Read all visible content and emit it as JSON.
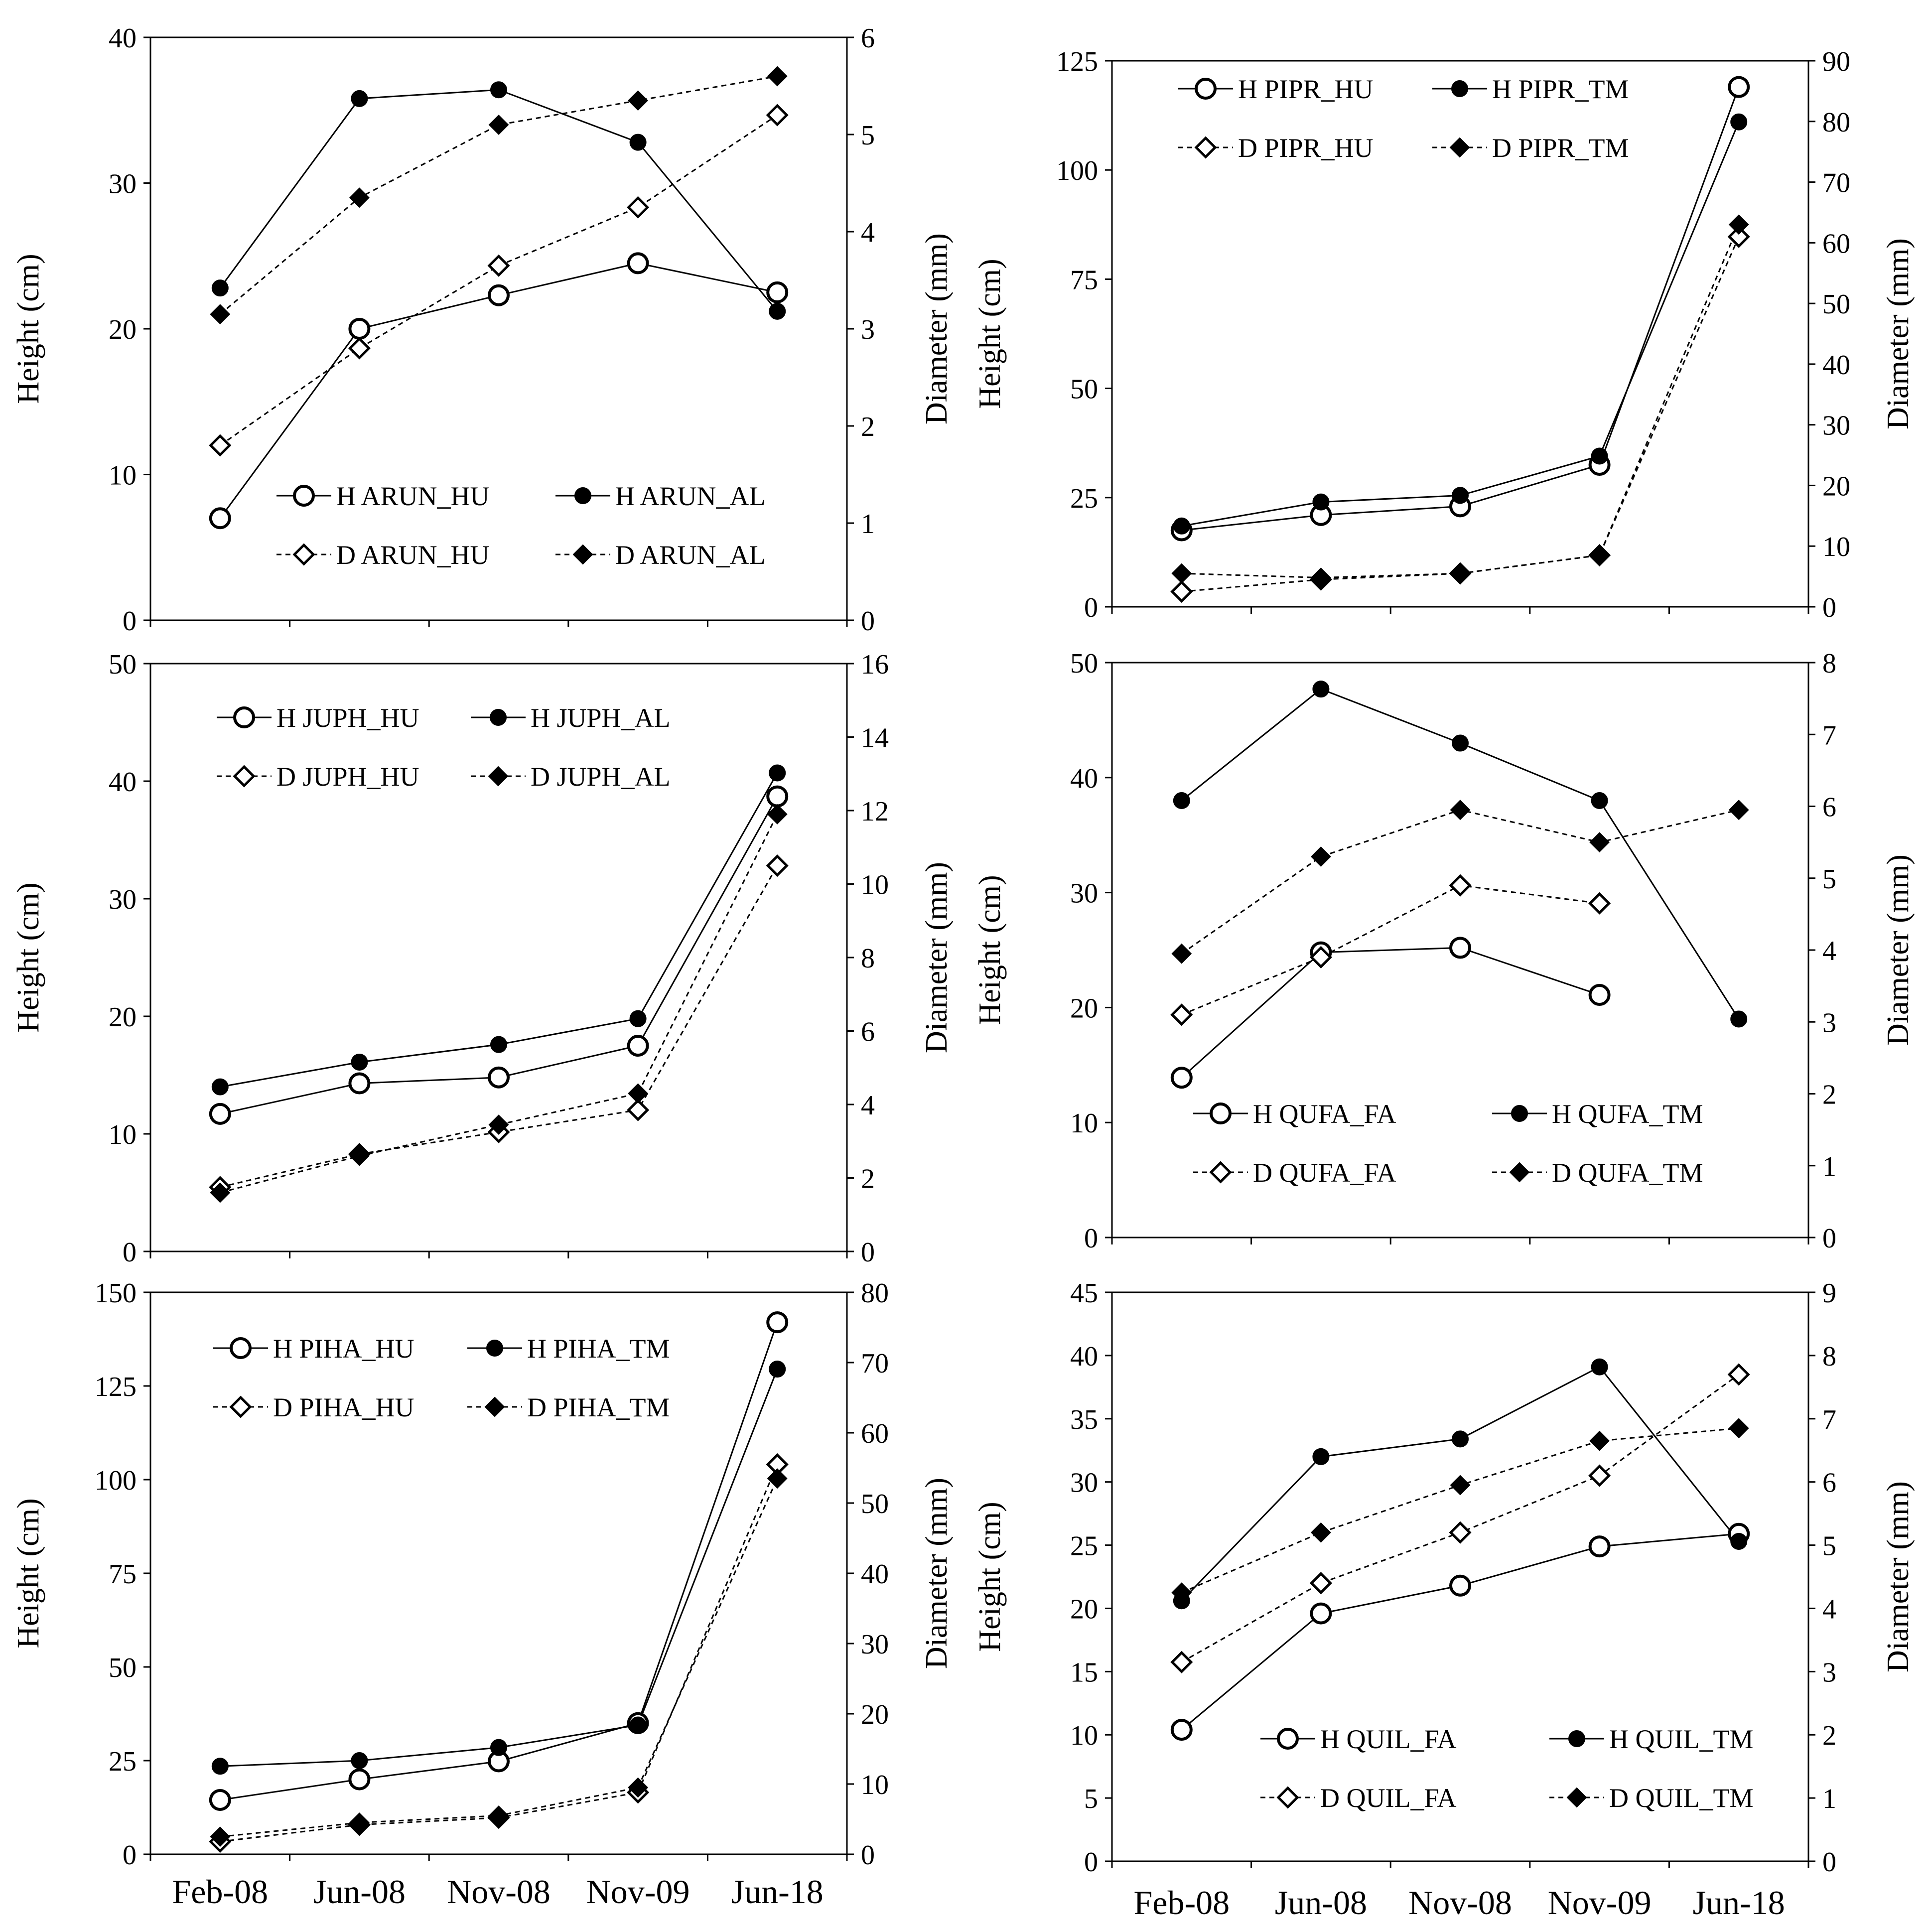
{
  "x_categories": [
    "Feb-08",
    "Jun-08",
    "Nov-08",
    "Nov-09",
    "Jun-18"
  ],
  "chart_data": [
    {
      "type": "line",
      "title": "",
      "xlabel": "",
      "ylabel": "Height (cm)",
      "y2label": "Diameter (mm)",
      "categories": [
        "Feb-08",
        "Jun-08",
        "Nov-08",
        "Nov-09",
        "Jun-18"
      ],
      "ylim": [
        0,
        40
      ],
      "yticks": [
        0,
        10,
        20,
        30,
        40
      ],
      "y2lim": [
        0,
        6
      ],
      "y2ticks": [
        0,
        1,
        2,
        3,
        4,
        5,
        6
      ],
      "legend_placement": "bottom-right",
      "series": [
        {
          "name": "H ARUN_HU",
          "axis": "left",
          "marker": "open-circle",
          "line": "solid",
          "values": [
            7,
            20,
            22.3,
            24.5,
            22.5
          ]
        },
        {
          "name": "H ARUN_AL",
          "axis": "left",
          "marker": "filled-circle",
          "line": "solid",
          "values": [
            22.8,
            35.8,
            36.4,
            32.8,
            21.2
          ]
        },
        {
          "name": "D ARUN_HU",
          "axis": "right",
          "marker": "open-diamond",
          "line": "dashed",
          "values": [
            1.8,
            2.8,
            3.65,
            4.25,
            5.2
          ]
        },
        {
          "name": "D ARUN_AL",
          "axis": "right",
          "marker": "filled-diamond",
          "line": "dashed",
          "values": [
            3.15,
            4.35,
            5.1,
            5.35,
            5.6
          ]
        }
      ]
    },
    {
      "type": "line",
      "title": "",
      "xlabel": "",
      "ylabel": "Height (cm)",
      "y2label": "Diameter (mm)",
      "categories": [
        "Feb-08",
        "Jun-08",
        "Nov-08",
        "Nov-09",
        "Jun-18"
      ],
      "ylim": [
        0,
        125
      ],
      "yticks": [
        0,
        25,
        50,
        75,
        100,
        125
      ],
      "y2lim": [
        0,
        90
      ],
      "y2ticks": [
        0,
        10,
        20,
        30,
        40,
        50,
        60,
        70,
        80,
        90
      ],
      "legend_placement": "top-left",
      "series": [
        {
          "name": "H PIPR_HU",
          "axis": "left",
          "marker": "open-circle",
          "line": "solid",
          "values": [
            17.5,
            21,
            23,
            32.5,
            119
          ]
        },
        {
          "name": "H PIPR_TM",
          "axis": "left",
          "marker": "filled-circle",
          "line": "solid",
          "values": [
            18.5,
            24,
            25.5,
            34.5,
            111
          ]
        },
        {
          "name": "D PIPR_HU",
          "axis": "right",
          "marker": "open-diamond",
          "line": "dashed",
          "values": [
            2.5,
            4.5,
            5.5,
            8.5,
            61
          ]
        },
        {
          "name": "D PIPR_TM",
          "axis": "right",
          "marker": "filled-diamond",
          "line": "dashed",
          "values": [
            5.5,
            4.8,
            5.5,
            8.5,
            63
          ]
        }
      ]
    },
    {
      "type": "line",
      "title": "",
      "xlabel": "",
      "ylabel": "Height (cm)",
      "y2label": "Diameter (mm)",
      "categories": [
        "Feb-08",
        "Jun-08",
        "Nov-08",
        "Nov-09",
        "Jun-18"
      ],
      "ylim": [
        0,
        50
      ],
      "yticks": [
        0,
        10,
        20,
        30,
        40,
        50
      ],
      "y2lim": [
        0,
        16
      ],
      "y2ticks": [
        0,
        2,
        4,
        6,
        8,
        10,
        12,
        14,
        16
      ],
      "legend_placement": "top-left",
      "series": [
        {
          "name": "H JUPH_HU",
          "axis": "left",
          "marker": "open-circle",
          "line": "solid",
          "values": [
            11.7,
            14.3,
            14.8,
            17.5,
            38.7
          ]
        },
        {
          "name": "H JUPH_AL",
          "axis": "left",
          "marker": "filled-circle",
          "line": "solid",
          "values": [
            14,
            16.1,
            17.6,
            19.8,
            40.7
          ]
        },
        {
          "name": "D JUPH_HU",
          "axis": "right",
          "marker": "open-diamond",
          "line": "dashed",
          "values": [
            1.75,
            2.65,
            3.25,
            3.85,
            10.5
          ]
        },
        {
          "name": "D JUPH_AL",
          "axis": "right",
          "marker": "filled-diamond",
          "line": "dashed",
          "values": [
            1.6,
            2.6,
            3.45,
            4.3,
            11.9
          ]
        }
      ]
    },
    {
      "type": "line",
      "title": "",
      "xlabel": "",
      "ylabel": "Height (cm)",
      "y2label": "Diameter (mm)",
      "categories": [
        "Feb-08",
        "Jun-08",
        "Nov-08",
        "Nov-09",
        "Jun-18"
      ],
      "ylim": [
        0,
        50
      ],
      "yticks": [
        0,
        10,
        20,
        30,
        40,
        50
      ],
      "y2lim": [
        0,
        8
      ],
      "y2ticks": [
        0,
        1,
        2,
        3,
        4,
        5,
        6,
        7,
        8
      ],
      "legend_placement": "bottom-center",
      "series": [
        {
          "name": "H QUFA_FA",
          "axis": "left",
          "marker": "open-circle",
          "line": "solid",
          "values": [
            13.9,
            24.8,
            25.2,
            21.1,
            null
          ]
        },
        {
          "name": "H QUFA_TM",
          "axis": "left",
          "marker": "filled-circle",
          "line": "solid",
          "values": [
            38,
            47.7,
            43,
            38,
            19
          ]
        },
        {
          "name": "D QUFA_FA",
          "axis": "right",
          "marker": "open-diamond",
          "line": "dashed",
          "values": [
            3.1,
            3.9,
            4.9,
            4.65,
            null
          ]
        },
        {
          "name": "D QUFA_TM",
          "axis": "right",
          "marker": "filled-diamond",
          "line": "dashed",
          "values": [
            3.95,
            5.3,
            5.95,
            5.5,
            5.95
          ]
        }
      ]
    },
    {
      "type": "line",
      "title": "",
      "xlabel": "",
      "ylabel": "Height (cm)",
      "y2label": "Diameter (mm)",
      "categories": [
        "Feb-08",
        "Jun-08",
        "Nov-08",
        "Nov-09",
        "Jun-18"
      ],
      "ylim": [
        0,
        150
      ],
      "yticks": [
        0,
        25,
        50,
        75,
        100,
        125,
        150
      ],
      "y2lim": [
        0,
        80
      ],
      "y2ticks": [
        0,
        10,
        20,
        30,
        40,
        50,
        60,
        70,
        80
      ],
      "legend_placement": "top-left",
      "series": [
        {
          "name": "H PIHA_HU",
          "axis": "left",
          "marker": "open-circle",
          "line": "solid",
          "values": [
            14.5,
            20,
            24.8,
            35,
            142
          ]
        },
        {
          "name": "H PIHA_TM",
          "axis": "left",
          "marker": "filled-circle",
          "line": "solid",
          "values": [
            23.5,
            25,
            28.5,
            34.5,
            129.5
          ]
        },
        {
          "name": "D PIHA_HU",
          "axis": "right",
          "marker": "open-diamond",
          "line": "dashed",
          "values": [
            1.8,
            4.2,
            5.2,
            8.8,
            55.5
          ]
        },
        {
          "name": "D PIHA_TM",
          "axis": "right",
          "marker": "filled-diamond",
          "line": "dashed",
          "values": [
            2.5,
            4.5,
            5.5,
            9.5,
            53.5
          ]
        }
      ]
    },
    {
      "type": "line",
      "title": "",
      "xlabel": "",
      "ylabel": "Height (cm)",
      "y2label": "Diameter (mm)",
      "categories": [
        "Feb-08",
        "Jun-08",
        "Nov-08",
        "Nov-09",
        "Jun-18"
      ],
      "ylim": [
        0,
        45
      ],
      "yticks": [
        0,
        5,
        10,
        15,
        20,
        25,
        30,
        35,
        40,
        45
      ],
      "y2lim": [
        0,
        9
      ],
      "y2ticks": [
        0,
        1,
        2,
        3,
        4,
        5,
        6,
        7,
        8,
        9
      ],
      "legend_placement": "bottom-right",
      "series": [
        {
          "name": "H QUIL_FA",
          "axis": "left",
          "marker": "open-circle",
          "line": "solid",
          "values": [
            10.4,
            19.6,
            21.8,
            24.9,
            25.9
          ]
        },
        {
          "name": "H QUIL_TM",
          "axis": "left",
          "marker": "filled-circle",
          "line": "solid",
          "values": [
            20.6,
            32,
            33.4,
            39.1,
            25.3
          ]
        },
        {
          "name": "D QUIL_FA",
          "axis": "right",
          "marker": "open-diamond",
          "line": "dashed",
          "values": [
            3.15,
            4.4,
            5.2,
            6.1,
            7.7
          ]
        },
        {
          "name": "D QUIL_TM",
          "axis": "right",
          "marker": "filled-diamond",
          "line": "dashed",
          "values": [
            4.25,
            5.2,
            5.95,
            6.65,
            6.85
          ]
        }
      ]
    }
  ]
}
